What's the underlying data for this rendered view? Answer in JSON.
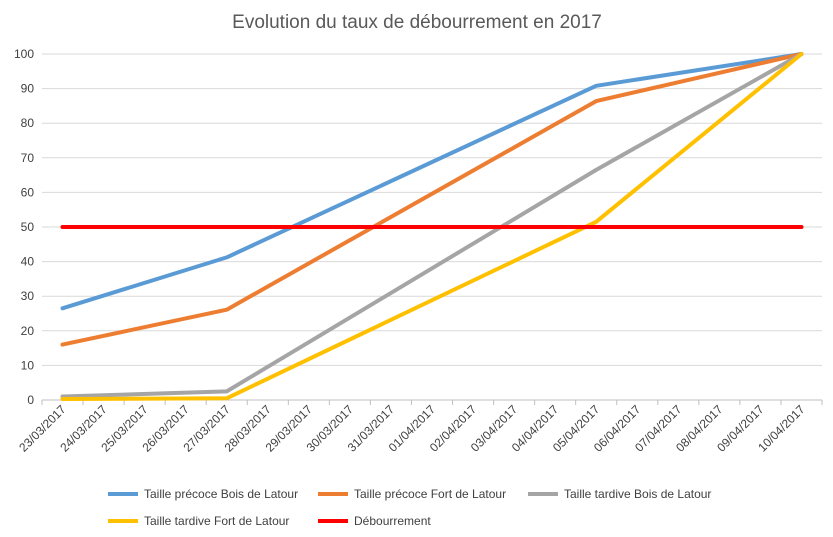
{
  "chart_data": {
    "type": "line",
    "title": "Evolution du taux de débourrement en 2017",
    "xlabel": "",
    "ylabel": "",
    "x": [
      "23/03/2017",
      "24/03/2017",
      "25/03/2017",
      "26/03/2017",
      "27/03/2017",
      "28/03/2017",
      "29/03/2017",
      "30/03/2017",
      "31/03/2017",
      "01/04/2017",
      "02/04/2017",
      "03/04/2017",
      "04/04/2017",
      "05/04/2017",
      "06/04/2017",
      "07/04/2017",
      "08/04/2017",
      "09/04/2017",
      "10/04/2017"
    ],
    "ylim": [
      0,
      100
    ],
    "yticks": [
      0,
      10,
      20,
      30,
      40,
      50,
      60,
      70,
      80,
      90,
      100
    ],
    "grid": true,
    "legend_position": "bottom",
    "series": [
      {
        "name": "Taille précoce Bois de Latour",
        "color": "#5B9BD5",
        "points": [
          [
            "23/03/2017",
            26.5
          ],
          [
            "27/03/2017",
            41.2
          ],
          [
            "05/04/2017",
            90.8
          ],
          [
            "10/04/2017",
            100
          ]
        ]
      },
      {
        "name": "Taille précoce Fort de Latour",
        "color": "#ED7D31",
        "points": [
          [
            "23/03/2017",
            16.0
          ],
          [
            "27/03/2017",
            26.1
          ],
          [
            "05/04/2017",
            86.4
          ],
          [
            "10/04/2017",
            100
          ]
        ]
      },
      {
        "name": "Taille tardive Bois de Latour",
        "color": "#A5A5A5",
        "points": [
          [
            "23/03/2017",
            1.0
          ],
          [
            "27/03/2017",
            2.5
          ],
          [
            "05/04/2017",
            66.5
          ],
          [
            "10/04/2017",
            100
          ]
        ]
      },
      {
        "name": "Taille tardive Fort de Latour",
        "color": "#FFC000",
        "points": [
          [
            "23/03/2017",
            0.3
          ],
          [
            "27/03/2017",
            0.5
          ],
          [
            "05/04/2017",
            51.5
          ],
          [
            "10/04/2017",
            100
          ]
        ]
      },
      {
        "name": "Débourrement",
        "color": "#FF0000",
        "points": [
          [
            "23/03/2017",
            50
          ],
          [
            "10/04/2017",
            50
          ]
        ]
      }
    ]
  }
}
